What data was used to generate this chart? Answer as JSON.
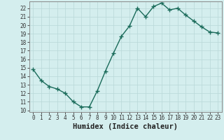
{
  "x": [
    0,
    1,
    2,
    3,
    4,
    5,
    6,
    7,
    8,
    9,
    10,
    11,
    12,
    13,
    14,
    15,
    16,
    17,
    18,
    19,
    20,
    21,
    22,
    23
  ],
  "y": [
    14.8,
    13.5,
    12.8,
    12.5,
    12.0,
    11.0,
    10.4,
    10.4,
    12.3,
    14.6,
    16.7,
    18.7,
    19.9,
    22.0,
    21.0,
    22.2,
    22.6,
    21.8,
    22.0,
    21.2,
    20.5,
    19.8,
    19.2,
    19.1
  ],
  "line_color": "#1a6b5a",
  "marker": "+",
  "marker_size": 4,
  "marker_linewidth": 1.0,
  "background_color": "#d4eeee",
  "grid_color": "#b8d8d8",
  "xlabel": "Humidex (Indice chaleur)",
  "xlabel_fontsize": 7.5,
  "xlabel_fontweight": "bold",
  "xlim": [
    -0.5,
    23.5
  ],
  "ylim": [
    9.8,
    22.8
  ],
  "yticks": [
    10,
    11,
    12,
    13,
    14,
    15,
    16,
    17,
    18,
    19,
    20,
    21,
    22
  ],
  "xticks": [
    0,
    1,
    2,
    3,
    4,
    5,
    6,
    7,
    8,
    9,
    10,
    11,
    12,
    13,
    14,
    15,
    16,
    17,
    18,
    19,
    20,
    21,
    22,
    23
  ],
  "tick_fontsize": 5.5,
  "line_width": 1.0,
  "spine_color": "#888888"
}
